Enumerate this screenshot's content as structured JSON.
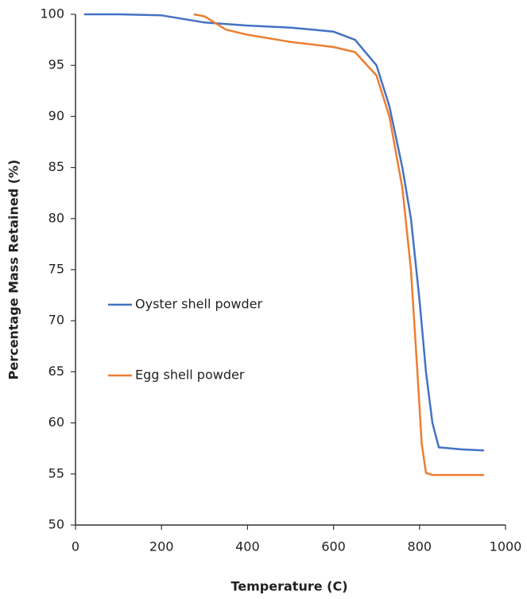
{
  "chart_data": {
    "type": "line",
    "x_label": "Temperature (C)",
    "y_label": "Percentage Mass Retained (%)",
    "xlim": [
      0,
      1000
    ],
    "xticks": [
      0,
      200,
      400,
      600,
      800,
      1000
    ],
    "ylim": [
      50,
      100
    ],
    "yticks": [
      50,
      55,
      60,
      65,
      70,
      75,
      80,
      85,
      90,
      95,
      100
    ],
    "grid": false,
    "legend": "left",
    "series": [
      {
        "name": "Oyster shell powder",
        "color": "#4472c4",
        "x": [
          20,
          100,
          200,
          300,
          400,
          500,
          600,
          650,
          700,
          730,
          760,
          780,
          800,
          815,
          830,
          845,
          900,
          950
        ],
        "values": [
          100,
          100,
          99.9,
          99.2,
          98.9,
          98.7,
          98.3,
          97.5,
          95,
          91,
          85,
          80,
          72,
          65,
          60,
          57.6,
          57.4,
          57.3
        ]
      },
      {
        "name": "Egg shell powder",
        "color": "#ed7d31",
        "x": [
          275,
          300,
          350,
          400,
          500,
          600,
          650,
          700,
          730,
          760,
          780,
          795,
          805,
          815,
          830,
          950
        ],
        "values": [
          100,
          99.8,
          98.5,
          98,
          97.3,
          96.8,
          96.3,
          94,
          90,
          83,
          75,
          65,
          58,
          55.1,
          54.9,
          54.9
        ]
      }
    ]
  }
}
